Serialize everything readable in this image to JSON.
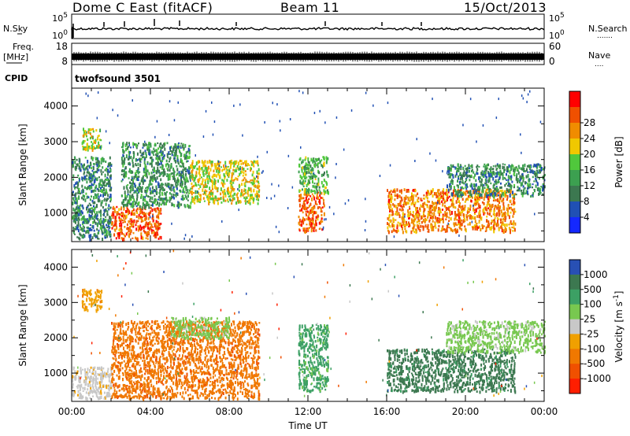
{
  "header": {
    "station": "Dome C East (fitACF)",
    "beam": "Beam 11",
    "date": "15/Oct/2013"
  },
  "top_panels": {
    "nsky": {
      "label": "N.Sky",
      "ticks": [
        "10^5",
        "10^0"
      ]
    },
    "nsearch": {
      "label": "N.Search",
      "ticks": [
        "10^5",
        "10^0"
      ]
    },
    "freq": {
      "label_line1": "Freq.",
      "label_line2": "[MHz]",
      "ticks": [
        "18",
        "8"
      ]
    },
    "nave": {
      "label": "Nave",
      "ticks": [
        "60",
        "0"
      ]
    },
    "cpid": {
      "label": "CPID",
      "value": "twofsound 3501"
    }
  },
  "chart_data": [
    {
      "type": "heatmap",
      "title": "",
      "xlabel": "Time UT",
      "ylabel": "Slant Range [km]",
      "xlim": [
        0,
        24
      ],
      "ylim": [
        200,
        4500
      ],
      "x_ticks": [
        "00:00",
        "04:00",
        "08:00",
        "12:00",
        "16:00",
        "20:00",
        "00:00"
      ],
      "y_ticks": [
        "1000",
        "2000",
        "3000",
        "4000"
      ],
      "colorbar": {
        "label": "Power [dB]",
        "range": [
          0,
          32
        ],
        "ticks": [
          "4",
          "8",
          "12",
          "16",
          "20",
          "24",
          "28"
        ],
        "colors": [
          "#1428ff",
          "#2050b4",
          "#3c7850",
          "#3ca050",
          "#50c83c",
          "#f0c800",
          "#f08c00",
          "#f05000",
          "#ff0000"
        ]
      },
      "echo_regions": [
        {
          "t0": 0.0,
          "t1": 2.0,
          "r0": 300,
          "r1": 2600,
          "value": 10
        },
        {
          "t0": 0.5,
          "t1": 1.5,
          "r0": 2800,
          "r1": 3400,
          "value": 18
        },
        {
          "t0": 2.0,
          "t1": 4.5,
          "r0": 300,
          "r1": 1200,
          "value": 26
        },
        {
          "t0": 2.5,
          "t1": 6.0,
          "r0": 1200,
          "r1": 3000,
          "value": 11
        },
        {
          "t0": 6.0,
          "t1": 9.5,
          "r0": 1300,
          "r1": 2500,
          "value": 19
        },
        {
          "t0": 11.5,
          "t1": 12.8,
          "r0": 500,
          "r1": 1600,
          "value": 26
        },
        {
          "t0": 11.5,
          "t1": 13.0,
          "r0": 1600,
          "r1": 2600,
          "value": 14
        },
        {
          "t0": 16.0,
          "t1": 22.5,
          "r0": 500,
          "r1": 1700,
          "value": 24
        },
        {
          "t0": 19.0,
          "t1": 24.0,
          "r0": 1500,
          "r1": 2400,
          "value": 10
        }
      ]
    },
    {
      "type": "heatmap",
      "title": "",
      "xlabel": "Time UT",
      "ylabel": "Slant Range [km]",
      "xlim": [
        0,
        24
      ],
      "ylim": [
        200,
        4500
      ],
      "x_ticks": [
        "00:00",
        "04:00",
        "08:00",
        "12:00",
        "16:00",
        "20:00",
        "00:00"
      ],
      "y_ticks": [
        "1000",
        "2000",
        "3000",
        "4000"
      ],
      "colorbar": {
        "label": "Velocity [m s^-1]",
        "ticks": [
          "1000",
          "500",
          "100",
          "25",
          "-25",
          "-100",
          "-500",
          "-1000"
        ],
        "colors": [
          "#2850b4",
          "#3c7850",
          "#3ca064",
          "#78c850",
          "#c8c8c8",
          "#f0a000",
          "#f07800",
          "#f05000",
          "#ff1e00"
        ]
      },
      "echo_regions": [
        {
          "t0": 0.0,
          "t1": 2.0,
          "r0": 300,
          "r1": 1200,
          "value": -25
        },
        {
          "t0": 0.5,
          "t1": 1.5,
          "r0": 2800,
          "r1": 3400,
          "value": -100
        },
        {
          "t0": 2.0,
          "t1": 9.5,
          "r0": 300,
          "r1": 2500,
          "value": -500
        },
        {
          "t0": 5.0,
          "t1": 8.0,
          "r0": 2000,
          "r1": 2600,
          "value": 25
        },
        {
          "t0": 11.5,
          "t1": 13.0,
          "r0": 500,
          "r1": 2400,
          "value": 100
        },
        {
          "t0": 16.0,
          "t1": 22.5,
          "r0": 500,
          "r1": 1700,
          "value": 500
        },
        {
          "t0": 19.0,
          "t1": 24.0,
          "r0": 1600,
          "r1": 2500,
          "value": 25
        }
      ]
    }
  ]
}
